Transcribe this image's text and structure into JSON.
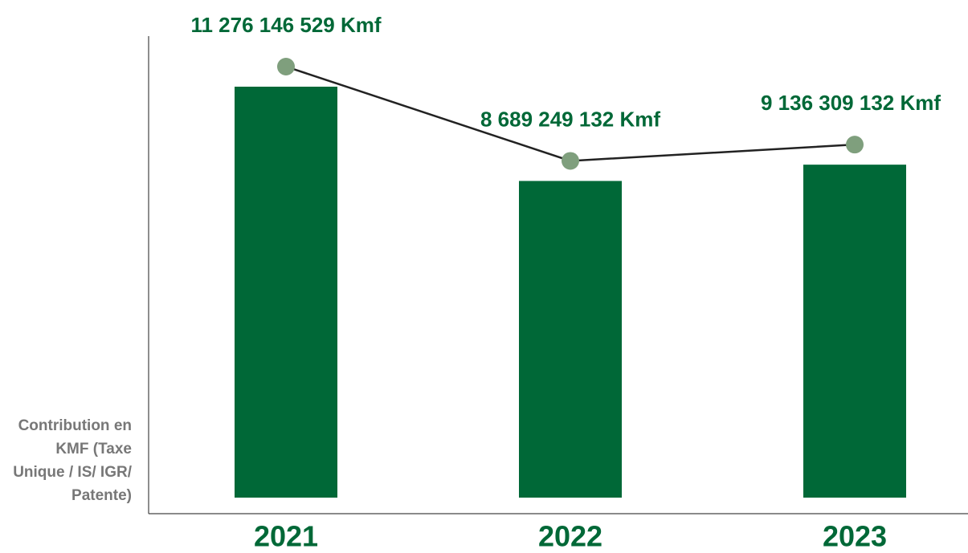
{
  "chart_data": {
    "type": "bar-line",
    "y_label": "Contribution en KMF (Taxe Unique / IS/ IGR/ Patente)",
    "categories": [
      "2021",
      "2022",
      "2023"
    ],
    "values": [
      11276146529,
      8689249132,
      9136309132
    ],
    "value_labels": [
      "11 276 146 529 Kmf",
      "8 689 249 132 Kmf",
      "9 136 309 132 Kmf"
    ],
    "color": "#006837",
    "line_color": "#222222",
    "marker_color": "#7f9f7d"
  }
}
